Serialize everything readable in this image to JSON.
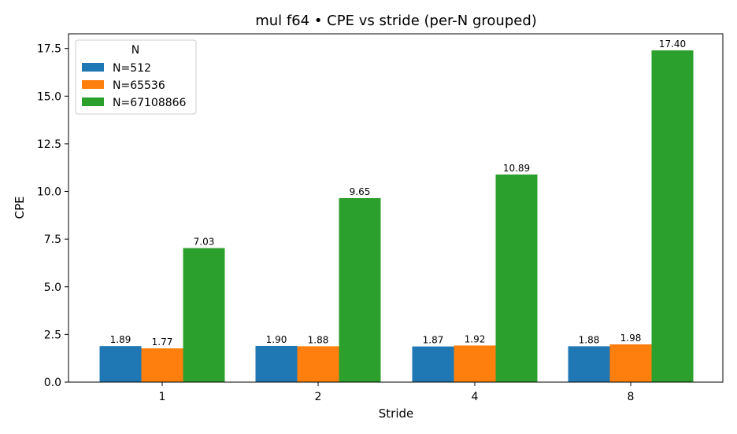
{
  "chart_data": {
    "type": "bar",
    "title": "mul f64 • CPE vs stride (per-N grouped)",
    "xlabel": "Stride",
    "ylabel": "CPE",
    "categories": [
      "1",
      "2",
      "4",
      "8"
    ],
    "ylim": [
      0,
      18.27
    ],
    "yticks": [
      "0.0",
      "2.5",
      "5.0",
      "7.5",
      "10.0",
      "12.5",
      "15.0",
      "17.5"
    ],
    "legend_title": "N",
    "legend_position": "top-left",
    "grid": false,
    "series": [
      {
        "name": "N=512",
        "color": "#1f77b4",
        "values": [
          1.89,
          1.9,
          1.87,
          1.88
        ],
        "labels": [
          "1.89",
          "1.90",
          "1.87",
          "1.88"
        ]
      },
      {
        "name": "N=65536",
        "color": "#ff7f0e",
        "values": [
          1.77,
          1.88,
          1.92,
          1.98
        ],
        "labels": [
          "1.77",
          "1.88",
          "1.92",
          "1.98"
        ]
      },
      {
        "name": "N=67108866",
        "color": "#2ca02c",
        "values": [
          7.03,
          9.65,
          10.89,
          17.4
        ],
        "labels": [
          "7.03",
          "9.65",
          "10.89",
          "17.40"
        ]
      }
    ]
  }
}
